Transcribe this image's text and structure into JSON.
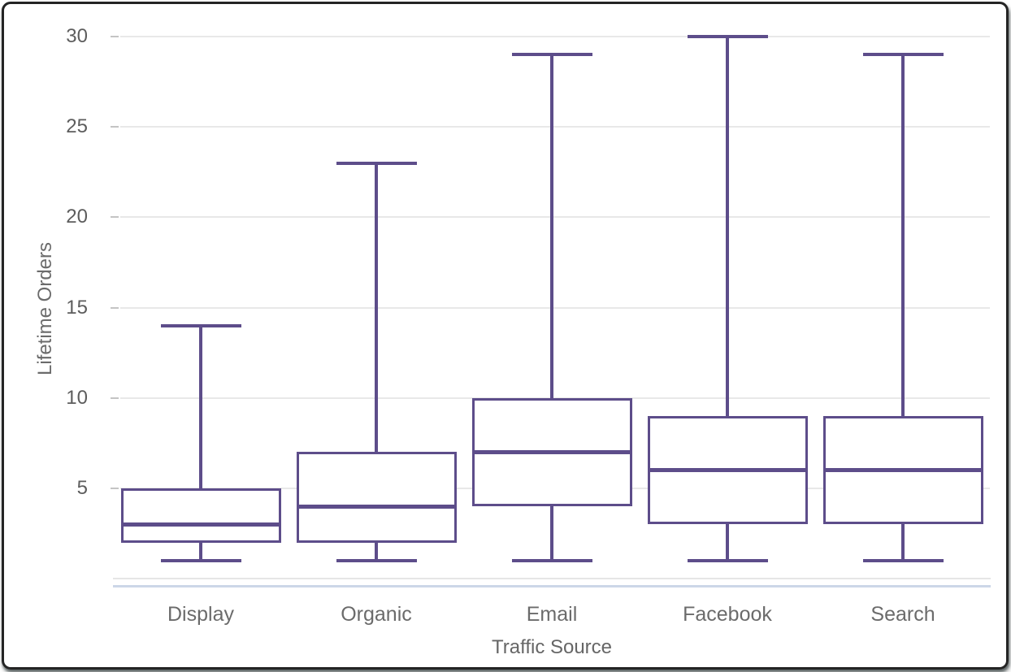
{
  "chart_data": {
    "type": "boxplot",
    "title": "",
    "xlabel": "Traffic Source",
    "ylabel": "Lifetime Orders",
    "categories": [
      "Display",
      "Organic",
      "Email",
      "Facebook",
      "Search"
    ],
    "boxes": [
      {
        "category": "Display",
        "min": 1,
        "q1": 2,
        "median": 3,
        "q3": 5,
        "max": 14
      },
      {
        "category": "Organic",
        "min": 1,
        "q1": 2,
        "median": 4,
        "q3": 7,
        "max": 23
      },
      {
        "category": "Email",
        "min": 1,
        "q1": 4,
        "median": 7,
        "q3": 10,
        "max": 29
      },
      {
        "category": "Facebook",
        "min": 1,
        "q1": 3,
        "median": 6,
        "q3": 9,
        "max": 30
      },
      {
        "category": "Search",
        "min": 1,
        "q1": 3,
        "median": 6,
        "q3": 9,
        "max": 29
      }
    ],
    "yticks": [
      5,
      10,
      15,
      20,
      25,
      30
    ],
    "ylim": [
      0,
      30.6
    ],
    "grid": true,
    "legend": false,
    "colors": {
      "box_stroke": "#5d4d8a",
      "box_fill": "#ffffff",
      "gridline": "#e8e8e8",
      "x_axis_line": "#ccd7e8",
      "tick_text": "#5d5d5d",
      "label_text": "#6b6b6b",
      "frame_border": "#242424"
    }
  }
}
